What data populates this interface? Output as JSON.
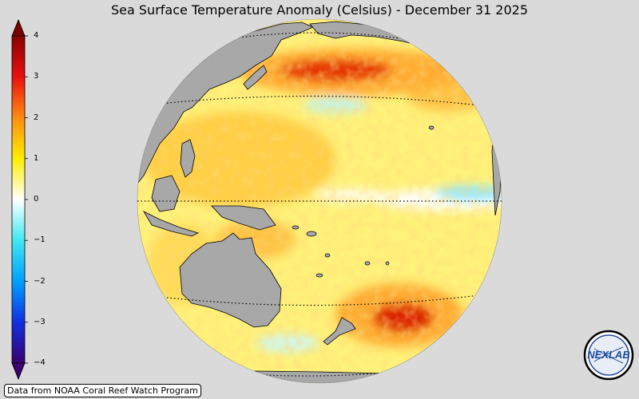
{
  "title": "Sea Surface Temperature Anomaly (Celsius) - December 31 2025",
  "colorbar": {
    "ticks": [
      {
        "value": 4,
        "label": "4"
      },
      {
        "value": 3,
        "label": "3"
      },
      {
        "value": 2,
        "label": "2"
      },
      {
        "value": 1,
        "label": "1"
      },
      {
        "value": 0,
        "label": "0"
      },
      {
        "value": -1,
        "label": "−1"
      },
      {
        "value": -2,
        "label": "−2"
      },
      {
        "value": -3,
        "label": "−3"
      },
      {
        "value": -4,
        "label": "−4"
      }
    ],
    "colors": {
      "max": "#7a0000",
      "c3": "#e01010",
      "c2": "#ff8a10",
      "c1": "#ffee00",
      "zero": "#ffffff",
      "cm1": "#40e8f0",
      "cm2": "#00a0ff",
      "cm3": "#1030e0",
      "min": "#3a0070"
    }
  },
  "credit": "Data from NOAA Coral Reef Watch Program",
  "logo": {
    "text": "NEXLAB"
  },
  "colors": {
    "land": "#a8a8a8",
    "ocean_base": "#fff27a",
    "warm": "#ffb000",
    "hot": "#e02000",
    "cool": "#9ff2ff"
  }
}
